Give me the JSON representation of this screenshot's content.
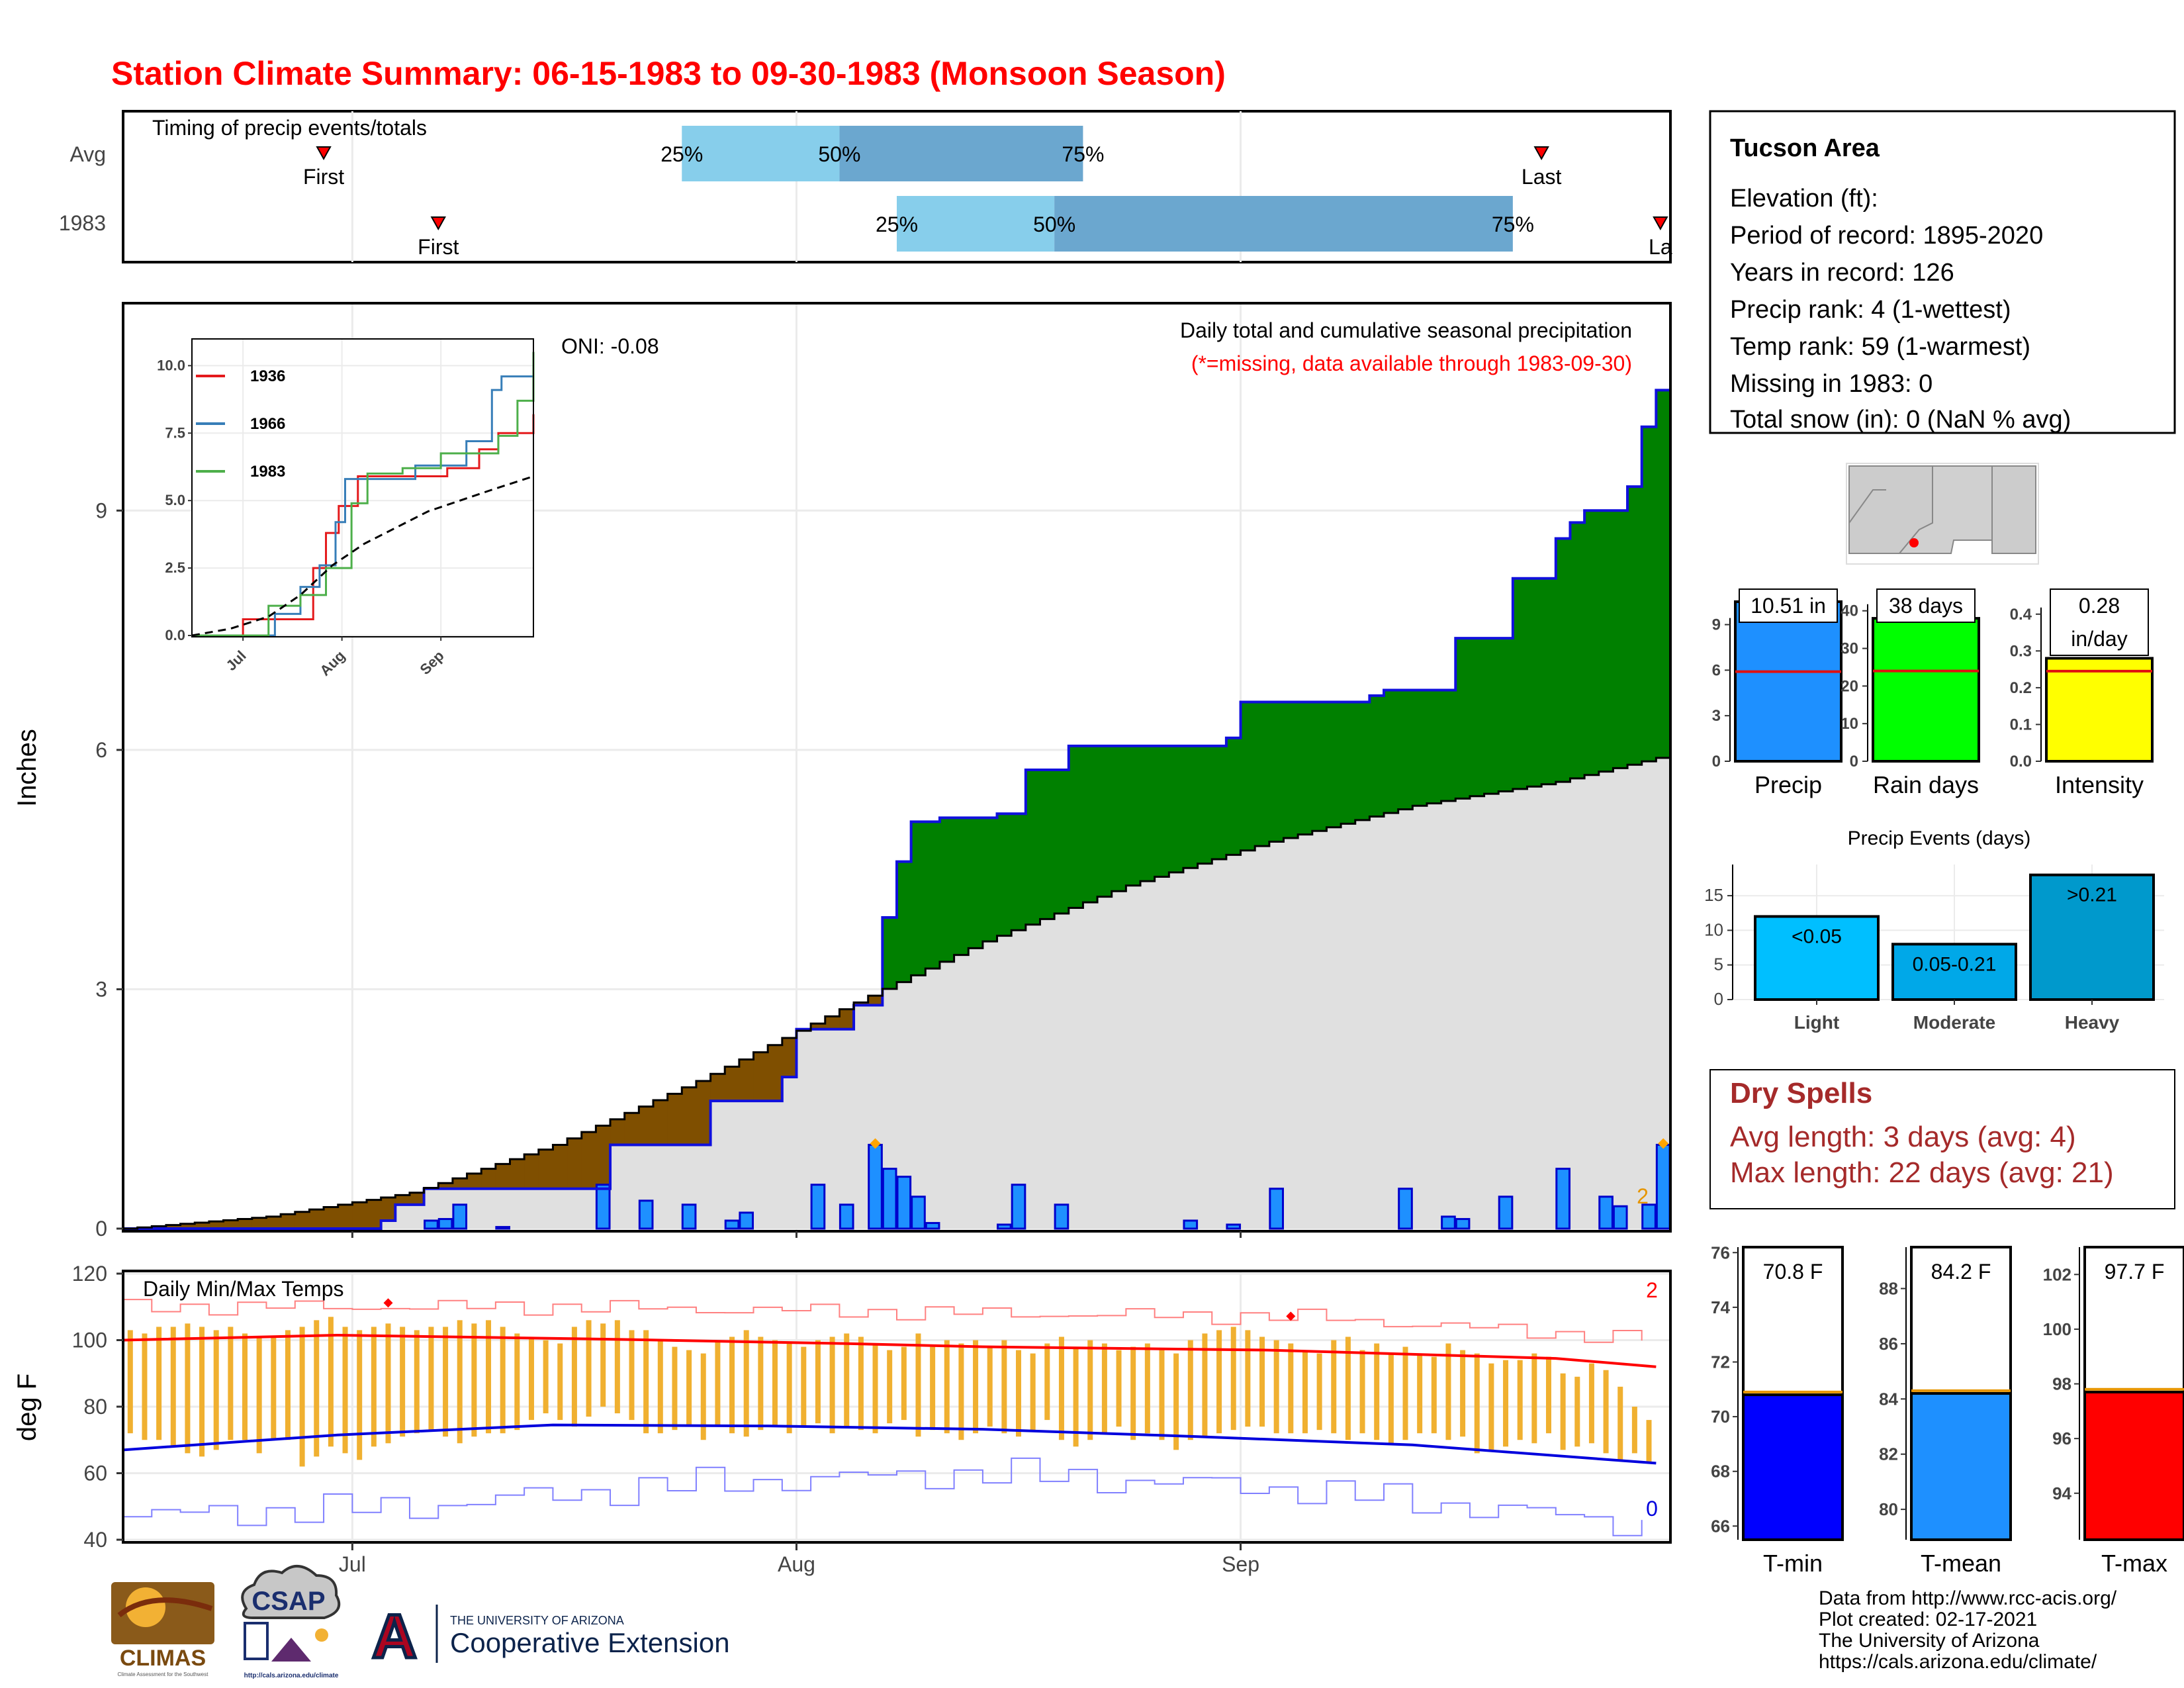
{
  "title": "Station Climate Summary: 06-15-1983 to 09-30-1983 (Monsoon Season)",
  "colors": {
    "title": "#ff0000",
    "precip_cum_above": "#008000",
    "precip_cum_below": "#7f4f00",
    "avg_fill": "#e0e0e0",
    "daily_bar": "#1e90ff",
    "daily_bar_outline": "#0000cc",
    "temp_bar": "#f0b030",
    "tmax_line": "#ff0000",
    "tmin_line": "#0000dd",
    "rain_days_bar": "#00ff00",
    "intensity_bar": "#ffff00",
    "light_bar": "#00bfff",
    "moderate_bar": "#00a8e8",
    "heavy_bar": "#0099cc",
    "dry_spell_text": "#a52a2a",
    "tmin_box": "#0000ff",
    "tmean_box": "#1e90ff",
    "tmax_box": "#ff0000"
  },
  "timing": {
    "label": "Timing of precip events/totals",
    "rows": [
      {
        "name": "Avg",
        "first": "First",
        "last": "Last",
        "p25": "25%",
        "p50": "50%",
        "p75": "75%"
      },
      {
        "name": "1983",
        "first": "First",
        "last": "La",
        "p25": "25%",
        "p50": "50%",
        "p75": "75%"
      }
    ]
  },
  "main_plot": {
    "ylabel": "Inches",
    "yticks": [
      "0",
      "3",
      "6",
      "9"
    ],
    "xticks": [
      "Jul",
      "Aug",
      "Sep"
    ],
    "subtitle": "Daily total and cumulative seasonal precipitation",
    "missing_note": "(*=missing, data available through 1983-09-30)",
    "oni": "ONI: -0.08",
    "extreme_label": "2"
  },
  "inset": {
    "yticks": [
      "0.0",
      "2.5",
      "5.0",
      "7.5",
      "10.0"
    ],
    "xticks": [
      "Jul",
      "Aug",
      "Sep"
    ],
    "legend": [
      {
        "name": "1936",
        "color": "#e41a1c"
      },
      {
        "name": "1966",
        "color": "#377eb8"
      },
      {
        "name": "1983",
        "color": "#4daf4a"
      }
    ]
  },
  "temp_plot": {
    "label": "Daily Min/Max Temps",
    "ylabel": "deg F",
    "yticks": [
      "40",
      "60",
      "80",
      "100",
      "120"
    ],
    "xticks": [
      "Jul",
      "Aug",
      "Sep"
    ],
    "record_high_count": "2",
    "record_low_count": "0"
  },
  "info": {
    "station": "Tucson Area",
    "elevation": "Elevation (ft):",
    "period": "Period of record: 1895-2020",
    "years": "Years in record: 126",
    "precip_rank": "Precip rank: 4 (1-wettest)",
    "temp_rank": "Temp rank: 59 (1-warmest)",
    "missing": "Missing in 1983: 0",
    "snow": "Total snow (in): 0 (NaN % avg)"
  },
  "summary_bars": [
    {
      "name": "Precip",
      "label": "10.51 in",
      "label2": "",
      "value": 10.51,
      "avg": 5.9,
      "ymax": 10.9,
      "yticks": [
        "0",
        "3",
        "6",
        "9"
      ],
      "tickvals": [
        0,
        3,
        6,
        9
      ],
      "color": "#1e90ff"
    },
    {
      "name": "Rain days",
      "label": "38 days",
      "label2": "",
      "value": 38,
      "avg": 24,
      "ymax": 44,
      "yticks": [
        "0",
        "10",
        "20",
        "30",
        "40"
      ],
      "tickvals": [
        0,
        10,
        20,
        30,
        40
      ],
      "color": "#00ff00"
    },
    {
      "name": "Intensity",
      "label": "0.28",
      "label2": "in/day",
      "value": 0.28,
      "avg": 0.245,
      "ymax": 0.45,
      "yticks": [
        "0.0",
        "0.1",
        "0.2",
        "0.3",
        "0.4"
      ],
      "tickvals": [
        0,
        0.1,
        0.2,
        0.3,
        0.4
      ],
      "color": "#ffff00"
    }
  ],
  "events": {
    "title": "Precip Events (days)",
    "yticks": [
      "0",
      "5",
      "10",
      "15"
    ],
    "bars": [
      {
        "name": "Light",
        "label": "<0.05",
        "value": 12
      },
      {
        "name": "Moderate",
        "label": "0.05-0.21",
        "value": 8
      },
      {
        "name": "Heavy",
        "label": ">0.21",
        "value": 18
      }
    ]
  },
  "dry_spells": {
    "title": "Dry Spells",
    "avg": "Avg length: 3 days (avg: 4)",
    "max": "Max length: 22 days (avg: 21)"
  },
  "temp_bars": [
    {
      "name": "T-min",
      "label": "70.8 F",
      "value": 70.8,
      "avg": 70.9,
      "ymin": 65.5,
      "ymax": 76.2,
      "yticks": [
        "66",
        "68",
        "70",
        "72",
        "74",
        "76"
      ],
      "tickvals": [
        66,
        68,
        70,
        72,
        74,
        76
      ],
      "color": "#0000ff"
    },
    {
      "name": "T-mean",
      "label": "84.2 F",
      "value": 84.2,
      "avg": 84.3,
      "ymin": 78.9,
      "ymax": 89.5,
      "yticks": [
        "80",
        "82",
        "84",
        "86",
        "88"
      ],
      "tickvals": [
        80,
        82,
        84,
        86,
        88
      ],
      "color": "#1e90ff"
    },
    {
      "name": "T-max",
      "label": "97.7 F",
      "value": 97.7,
      "avg": 97.8,
      "ymin": 92.3,
      "ymax": 103.0,
      "yticks": [
        "94",
        "96",
        "98",
        "100",
        "102"
      ],
      "tickvals": [
        94,
        96,
        98,
        100,
        102
      ],
      "color": "#ff0000"
    }
  ],
  "footer": {
    "line1": "Data from http://www.rcc-acis.org/",
    "line2": "Plot created: 02-17-2021",
    "line3": "The University of Arizona",
    "line4": "https://cals.arizona.edu/climate/"
  },
  "logos": {
    "climas": "CLIMAS",
    "climas_sub": "Climate Assessment for the Southwest",
    "csap": "CSAP",
    "csap_url": "http://cals.arizona.edu/climate",
    "ua_letter": "A",
    "ua_line1": "THE UNIVERSITY OF ARIZONA",
    "ua_line2": "Cooperative Extension"
  },
  "chart_data": {
    "type": "area",
    "x_range": [
      "1983-06-15",
      "1983-09-30"
    ],
    "ylim": [
      0,
      11.5
    ],
    "series": [
      {
        "name": "1983",
        "kind": "cumulative",
        "points": [
          [
            "1983-06-15",
            0
          ],
          [
            "1983-07-03",
            0.1
          ],
          [
            "1983-07-04",
            0.3
          ],
          [
            "1983-07-06",
            0.5
          ],
          [
            "1983-07-10",
            0.5
          ],
          [
            "1983-07-18",
            0.5
          ],
          [
            "1983-07-19",
            1.05
          ],
          [
            "1983-07-26",
            1.6
          ],
          [
            "1983-07-31",
            1.9
          ],
          [
            "1983-08-01",
            2.5
          ],
          [
            "1983-08-05",
            2.8
          ],
          [
            "1983-08-07",
            3.9
          ],
          [
            "1983-08-08",
            4.6
          ],
          [
            "1983-08-09",
            5.1
          ],
          [
            "1983-08-11",
            5.15
          ],
          [
            "1983-08-15",
            5.2
          ],
          [
            "1983-08-17",
            5.75
          ],
          [
            "1983-08-20",
            6.05
          ],
          [
            "1983-08-31",
            6.15
          ],
          [
            "1983-09-01",
            6.6
          ],
          [
            "1983-09-10",
            6.68
          ],
          [
            "1983-09-11",
            6.75
          ],
          [
            "1983-09-16",
            7.4
          ],
          [
            "1983-09-20",
            8.15
          ],
          [
            "1983-09-23",
            8.65
          ],
          [
            "1983-09-24",
            8.85
          ],
          [
            "1983-09-25",
            9.0
          ],
          [
            "1983-09-28",
            9.05
          ],
          [
            "1983-09-28",
            9.3
          ],
          [
            "1983-09-29",
            10.05
          ],
          [
            "1983-09-30",
            10.51
          ]
        ]
      },
      {
        "name": "Avg",
        "kind": "cumulative",
        "points": [
          [
            "1983-06-15",
            0
          ],
          [
            "1983-06-25",
            0.15
          ],
          [
            "1983-07-05",
            0.45
          ],
          [
            "1983-07-15",
            1.05
          ],
          [
            "1983-07-25",
            1.85
          ],
          [
            "1983-08-04",
            2.75
          ],
          [
            "1983-08-14",
            3.6
          ],
          [
            "1983-08-24",
            4.3
          ],
          [
            "1983-09-03",
            4.85
          ],
          [
            "1983-09-13",
            5.3
          ],
          [
            "1983-09-23",
            5.6
          ],
          [
            "1983-09-30",
            5.9
          ]
        ]
      }
    ],
    "daily_precip": [
      [
        "1983-07-06",
        0.1
      ],
      [
        "1983-07-07",
        0.12
      ],
      [
        "1983-07-08",
        0.3
      ],
      [
        "1983-07-11",
        0.02
      ],
      [
        "1983-07-18",
        0.55
      ],
      [
        "1983-07-21",
        0.35
      ],
      [
        "1983-07-24",
        0.3
      ],
      [
        "1983-07-27",
        0.1
      ],
      [
        "1983-07-28",
        0.2
      ],
      [
        "1983-08-02",
        0.55
      ],
      [
        "1983-08-04",
        0.3
      ],
      [
        "1983-08-06",
        1.05
      ],
      [
        "1983-08-07",
        0.75
      ],
      [
        "1983-08-08",
        0.65
      ],
      [
        "1983-08-09",
        0.4
      ],
      [
        "1983-08-10",
        0.07
      ],
      [
        "1983-08-15",
        0.05
      ],
      [
        "1983-08-16",
        0.55
      ],
      [
        "1983-08-19",
        0.3
      ],
      [
        "1983-08-28",
        0.1
      ],
      [
        "1983-08-31",
        0.05
      ],
      [
        "1983-09-03",
        0.5
      ],
      [
        "1983-09-12",
        0.5
      ],
      [
        "1983-09-15",
        0.15
      ],
      [
        "1983-09-16",
        0.12
      ],
      [
        "1983-09-19",
        0.4
      ],
      [
        "1983-09-23",
        0.75
      ],
      [
        "1983-09-26",
        0.4
      ],
      [
        "1983-09-27",
        0.28
      ],
      [
        "1983-09-29",
        0.3
      ],
      [
        "1983-09-30",
        1.05
      ]
    ],
    "inset": {
      "xlim": [
        "1983-06-15",
        "1983-09-30"
      ],
      "ylim": [
        0,
        10.5
      ],
      "series": [
        {
          "name": "1936",
          "points": [
            [
              0,
              0
            ],
            [
              14,
              0
            ],
            [
              16,
              0.6
            ],
            [
              36,
              0.6
            ],
            [
              38,
              2.5
            ],
            [
              42,
              3.8
            ],
            [
              46,
              4.8
            ],
            [
              52,
              5.9
            ],
            [
              80,
              6.2
            ],
            [
              90,
              6.9
            ],
            [
              96,
              7.5
            ],
            [
              107,
              8.2
            ]
          ]
        },
        {
          "name": "1966",
          "points": [
            [
              0,
              0
            ],
            [
              22,
              0
            ],
            [
              26,
              0.8
            ],
            [
              34,
              1.8
            ],
            [
              40,
              2.6
            ],
            [
              45,
              4.2
            ],
            [
              48,
              5.8
            ],
            [
              70,
              6.3
            ],
            [
              86,
              7.2
            ],
            [
              94,
              9.1
            ],
            [
              97,
              9.6
            ],
            [
              107,
              9.85
            ]
          ]
        },
        {
          "name": "1983",
          "points": [
            [
              0,
              0
            ],
            [
              20,
              0
            ],
            [
              24,
              1.1
            ],
            [
              34,
              1.5
            ],
            [
              42,
              2.5
            ],
            [
              50,
              4.9
            ],
            [
              55,
              6.0
            ],
            [
              66,
              6.2
            ],
            [
              78,
              6.75
            ],
            [
              96,
              7.4
            ],
            [
              102,
              8.7
            ],
            [
              107,
              10.51
            ]
          ]
        },
        {
          "name": "Avg",
          "points": [
            [
              0,
              0
            ],
            [
              12,
              0.25
            ],
            [
              24,
              0.7
            ],
            [
              34,
              1.5
            ],
            [
              44,
              2.6
            ],
            [
              54,
              3.4
            ],
            [
              64,
              4.0
            ],
            [
              74,
              4.6
            ],
            [
              84,
              5.0
            ],
            [
              94,
              5.4
            ],
            [
              107,
              5.9
            ]
          ]
        }
      ]
    },
    "temps": {
      "ylim": [
        40,
        120
      ],
      "avg_tmax": [
        [
          0,
          100
        ],
        [
          15,
          101.5
        ],
        [
          35,
          100.2
        ],
        [
          50,
          99
        ],
        [
          60,
          98
        ],
        [
          80,
          97
        ],
        [
          100,
          94.5
        ],
        [
          107,
          92
        ]
      ],
      "avg_tmin": [
        [
          0,
          67
        ],
        [
          15,
          71.5
        ],
        [
          30,
          74.5
        ],
        [
          45,
          74.2
        ],
        [
          60,
          73.2
        ],
        [
          75,
          71
        ],
        [
          90,
          68.5
        ],
        [
          107,
          63
        ]
      ],
      "record_high": [
        [
          0,
          110
        ],
        [
          30,
          110
        ],
        [
          60,
          108
        ],
        [
          82,
          107
        ],
        [
          107,
          100
        ]
      ],
      "record_low": [
        [
          0,
          47
        ],
        [
          20,
          50
        ],
        [
          40,
          57
        ],
        [
          60,
          60
        ],
        [
          82,
          55
        ],
        [
          100,
          47
        ],
        [
          107,
          44
        ]
      ],
      "daily_max": [
        103,
        102,
        104,
        104,
        105,
        104,
        103,
        104,
        102,
        101,
        101,
        103,
        104,
        106,
        107,
        104,
        103,
        104,
        105,
        104,
        103,
        104,
        104,
        106,
        105,
        106,
        104,
        102,
        101,
        100,
        99,
        104,
        106,
        105,
        106,
        103,
        103,
        100,
        98,
        97,
        96,
        100,
        101,
        103,
        101,
        100,
        99,
        98,
        100,
        101,
        102,
        101,
        99,
        97,
        98,
        102,
        98,
        100,
        99,
        100,
        98,
        100,
        97,
        96,
        99,
        101,
        98,
        100,
        99,
        97,
        98,
        99,
        97,
        96,
        100,
        102,
        103,
        104,
        103,
        101,
        100,
        99,
        97,
        96,
        100,
        101,
        97,
        99,
        96,
        98,
        96,
        95,
        99,
        97,
        96,
        93,
        94,
        94,
        96,
        95,
        90,
        89,
        93,
        91,
        86,
        80,
        76
      ],
      "daily_min": [
        72,
        70,
        70,
        68,
        66,
        65,
        67,
        70,
        70,
        66,
        70,
        70,
        62,
        65,
        68,
        66,
        64,
        68,
        69,
        71,
        72,
        73,
        71,
        69,
        71,
        72,
        72,
        73,
        76,
        78,
        76,
        74,
        77,
        80,
        78,
        76,
        72,
        72,
        73,
        74,
        70,
        74,
        72,
        71,
        73,
        74,
        72,
        74,
        75,
        72,
        74,
        73,
        72,
        75,
        76,
        71,
        73,
        72,
        70,
        72,
        74,
        72,
        71,
        73,
        76,
        70,
        68,
        70,
        72,
        74,
        70,
        72,
        70,
        67,
        70,
        71,
        72,
        73,
        74,
        74,
        72,
        72,
        72,
        73,
        72,
        70,
        72,
        70,
        69,
        70,
        72,
        72,
        70,
        71,
        66,
        67,
        68,
        70,
        69,
        72,
        67,
        68,
        69,
        66,
        64,
        66,
        63
      ]
    }
  }
}
